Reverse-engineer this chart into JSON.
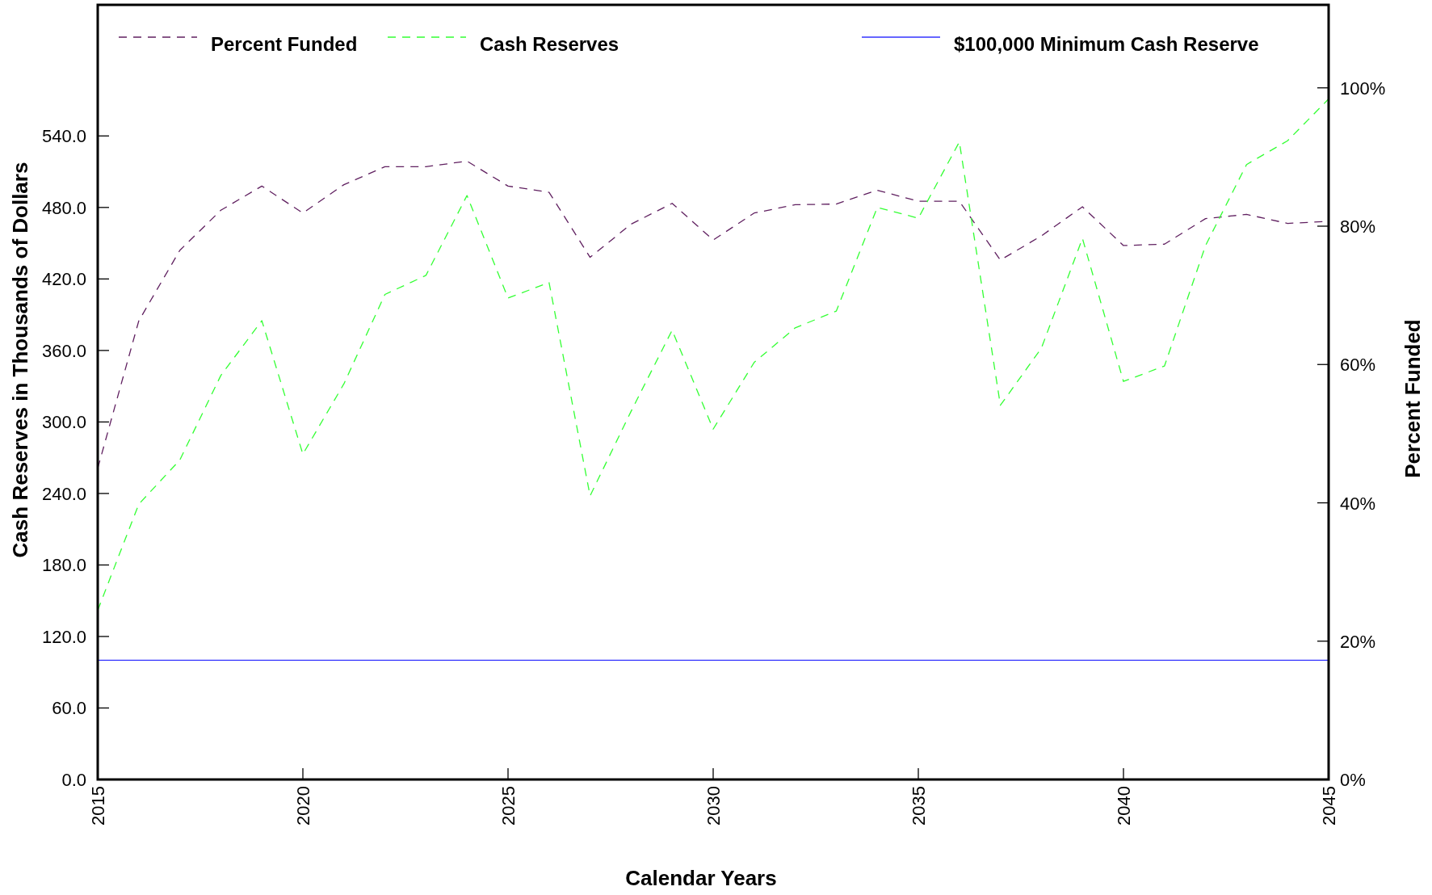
{
  "chart_data": {
    "type": "line",
    "xlabel": "Calendar Years",
    "ylabel": "Cash Reserves in Thousands of Dollars",
    "y2label": "Percent Funded",
    "x": [
      2015,
      2016,
      2017,
      2018,
      2019,
      2020,
      2021,
      2022,
      2023,
      2024,
      2025,
      2026,
      2027,
      2028,
      2029,
      2030,
      2031,
      2032,
      2033,
      2034,
      2035,
      2036,
      2037,
      2038,
      2039,
      2040,
      2041,
      2042,
      2043,
      2044,
      2045
    ],
    "series": [
      {
        "name": "Percent Funded",
        "color": "#602060",
        "axis": "y2",
        "values": [
          45,
          66.3,
          76.5,
          82.3,
          85.8,
          81.9,
          86,
          88.6,
          88.6,
          89.4,
          85.8,
          84.9,
          75.5,
          80.3,
          83.3,
          78,
          81.9,
          83.1,
          83.2,
          85.2,
          83.6,
          83.6,
          75.1,
          78.6,
          82.8,
          77.2,
          77.4,
          81.1,
          81.7,
          80.4,
          80.7
        ]
      },
      {
        "name": "Cash Reserves",
        "color": "#33ff33",
        "values": [
          142,
          231,
          268,
          339,
          385,
          273,
          332,
          407,
          423,
          490,
          404,
          417,
          238,
          309,
          377,
          294,
          350,
          379,
          393,
          480,
          471,
          535,
          314,
          362,
          454,
          334,
          347,
          448,
          516,
          536,
          571
        ]
      }
    ],
    "ref_lines": [
      {
        "axis": "y",
        "value": 100,
        "label": "$100,000 Minimum Cash Reserve",
        "color": "#3333ff",
        "line_style": "solid"
      }
    ],
    "xlim": [
      2015,
      2045
    ],
    "xticks": [
      2015,
      2020,
      2025,
      2030,
      2035,
      2040,
      2045
    ],
    "ylim": [
      0,
      650
    ],
    "yticks": [
      {
        "value": 0,
        "label": "0.0"
      },
      {
        "value": 60,
        "label": "60.0"
      },
      {
        "value": 120,
        "label": "120.0"
      },
      {
        "value": 180,
        "label": "180.0"
      },
      {
        "value": 240,
        "label": "240.0"
      },
      {
        "value": 300,
        "label": "300.0"
      },
      {
        "value": 360,
        "label": "360.0"
      },
      {
        "value": 420,
        "label": "420.0"
      },
      {
        "value": 480,
        "label": "480.0"
      },
      {
        "value": 540,
        "label": "540.0"
      }
    ],
    "y2lim": [
      0,
      112
    ],
    "y2ticks": [
      {
        "value": 0,
        "label": "0%"
      },
      {
        "value": 20,
        "label": "20%"
      },
      {
        "value": 40,
        "label": "40%"
      },
      {
        "value": 60,
        "label": "60%"
      },
      {
        "value": 80,
        "label": "80%"
      },
      {
        "value": 100,
        "label": "100%"
      }
    ],
    "grid": false,
    "legend": "top",
    "line_style": "dashed",
    "marker": "none"
  }
}
